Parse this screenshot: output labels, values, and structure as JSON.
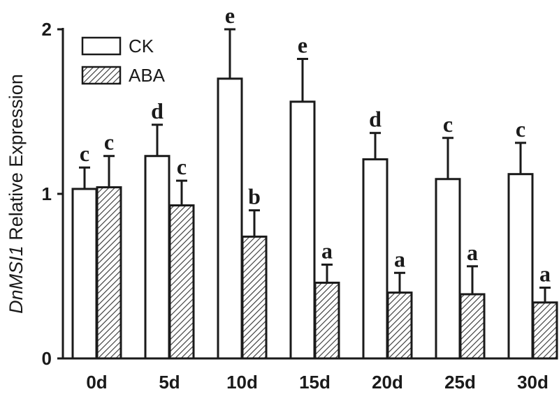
{
  "chart_data": {
    "type": "bar",
    "categories": [
      "0d",
      "5d",
      "10d",
      "15d",
      "20d",
      "25d",
      "30d"
    ],
    "series": [
      {
        "name": "CK",
        "values": [
          1.03,
          1.23,
          1.7,
          1.56,
          1.21,
          1.09,
          1.12
        ],
        "errors": [
          0.13,
          0.19,
          0.3,
          0.26,
          0.16,
          0.25,
          0.19
        ],
        "letters": [
          "c",
          "d",
          "e",
          "e",
          "d",
          "c",
          "c"
        ],
        "fill": "#ffffff",
        "pattern": "none"
      },
      {
        "name": "ABA",
        "values": [
          1.04,
          0.93,
          0.74,
          0.46,
          0.4,
          0.39,
          0.34
        ],
        "errors": [
          0.19,
          0.15,
          0.16,
          0.11,
          0.12,
          0.17,
          0.09
        ],
        "letters": [
          "c",
          "c",
          "b",
          "a",
          "a",
          "a",
          "a"
        ],
        "fill": "#ffffff",
        "pattern": "diagonal-hatch"
      }
    ],
    "ylabel_italic": "DnMSI1",
    "ylabel_rest": " Relative Expression",
    "xlabel": "",
    "title": "",
    "ylim": [
      0,
      2
    ],
    "yticks": [
      "0",
      "1",
      "2"
    ],
    "ytick_values": [
      0,
      1,
      2
    ],
    "grid": false,
    "legend_position": "top-left",
    "error_bars": "upper-only",
    "colors": {
      "stroke": "#1a1a1a",
      "background": "#ffffff"
    }
  }
}
